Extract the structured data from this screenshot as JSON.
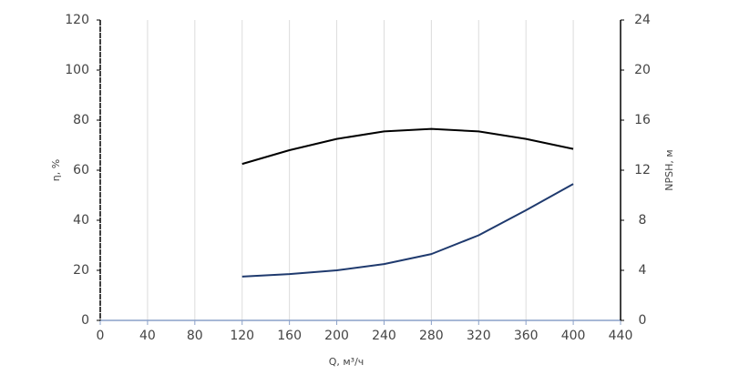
{
  "chart_data": {
    "type": "line",
    "xlabel": "Q, м³/ч",
    "ylabel": "η, %",
    "y2label": "NPSH, м",
    "x": [
      120,
      160,
      200,
      240,
      280,
      320,
      360,
      400
    ],
    "series": [
      {
        "color": "#000000",
        "values": [
          62.5,
          68,
          72.5,
          75.5,
          76.5,
          75.5,
          72.5,
          68.5
        ]
      },
      {
        "color": "#1f3a6e",
        "axis": "y2",
        "values": [
          3.5,
          3.7,
          4.0,
          4.5,
          5.3,
          6.8,
          8.8,
          10.9
        ]
      }
    ],
    "xlim": [
      0,
      440
    ],
    "xticks": [
      0,
      40,
      80,
      120,
      160,
      200,
      240,
      280,
      320,
      360,
      400,
      440
    ],
    "ylim": [
      0,
      120
    ],
    "yticks": [
      0,
      20,
      40,
      60,
      80,
      100,
      120
    ],
    "y2lim": [
      0,
      24
    ],
    "y2ticks": [
      0,
      4,
      8,
      12,
      16,
      20,
      24
    ],
    "grid": true
  }
}
